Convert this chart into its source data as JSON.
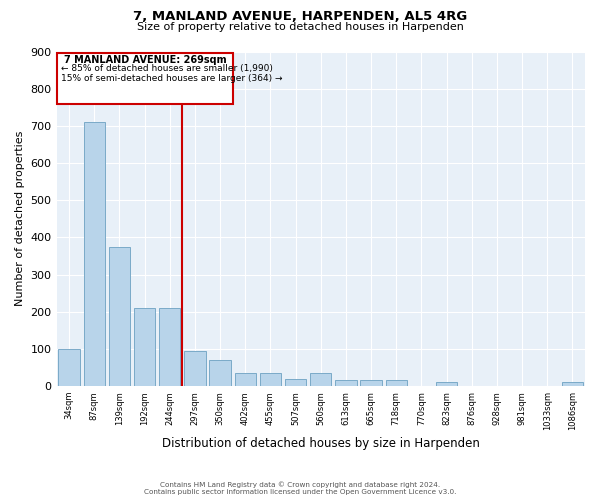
{
  "title": "7, MANLAND AVENUE, HARPENDEN, AL5 4RG",
  "subtitle": "Size of property relative to detached houses in Harpenden",
  "xlabel": "Distribution of detached houses by size in Harpenden",
  "ylabel": "Number of detached properties",
  "bar_labels": [
    "34sqm",
    "87sqm",
    "139sqm",
    "192sqm",
    "244sqm",
    "297sqm",
    "350sqm",
    "402sqm",
    "455sqm",
    "507sqm",
    "560sqm",
    "613sqm",
    "665sqm",
    "718sqm",
    "770sqm",
    "823sqm",
    "876sqm",
    "928sqm",
    "981sqm",
    "1033sqm",
    "1086sqm"
  ],
  "bar_values": [
    100,
    710,
    375,
    210,
    210,
    95,
    70,
    35,
    35,
    20,
    35,
    15,
    15,
    15,
    0,
    10,
    0,
    0,
    0,
    0,
    10
  ],
  "bar_color": "#b8d4ea",
  "bar_edge_color": "#7aaac8",
  "vline_x": 4.5,
  "vline_color": "#cc0000",
  "annotation_title": "7 MANLAND AVENUE: 269sqm",
  "annotation_line1": "← 85% of detached houses are smaller (1,990)",
  "annotation_line2": "15% of semi-detached houses are larger (364) →",
  "annotation_box_color": "#ffffff",
  "annotation_box_edge": "#cc0000",
  "ylim": [
    0,
    900
  ],
  "yticks": [
    0,
    100,
    200,
    300,
    400,
    500,
    600,
    700,
    800,
    900
  ],
  "footer_line1": "Contains HM Land Registry data © Crown copyright and database right 2024.",
  "footer_line2": "Contains public sector information licensed under the Open Government Licence v3.0.",
  "bg_color": "#ffffff",
  "plot_bg_color": "#e8f0f8",
  "grid_color": "#ffffff"
}
